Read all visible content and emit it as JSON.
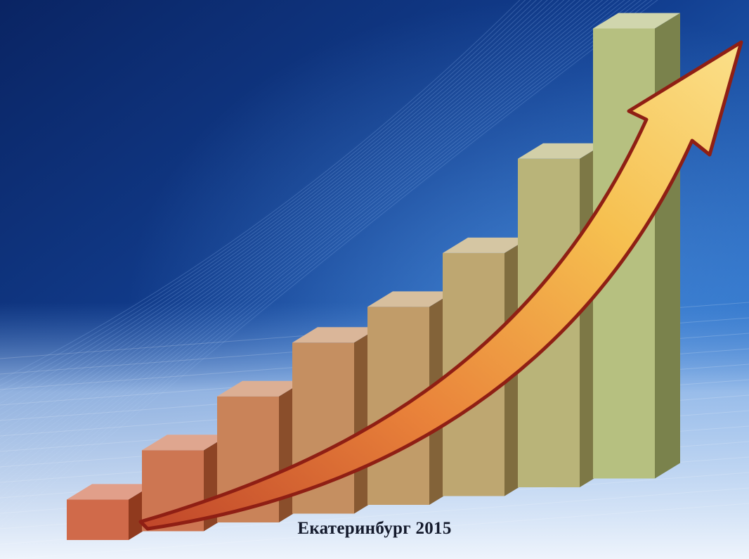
{
  "caption": "Екатеринбург 2015",
  "illustration": {
    "subject": "rising-bar-chart-with-arrow",
    "bar_count": 8,
    "relative_heights": [
      0.09,
      0.18,
      0.28,
      0.38,
      0.44,
      0.54,
      0.73,
      1.0
    ],
    "colors": {
      "background_top": "#0b2a6b",
      "background_mid": "#1e5cb3",
      "floor": "#dbe7f7",
      "bars_start": "#c8502a",
      "bars_end": "#a9b56a",
      "arrow_fill": "#f3b84a",
      "arrow_edge": "#8f1f14"
    }
  }
}
